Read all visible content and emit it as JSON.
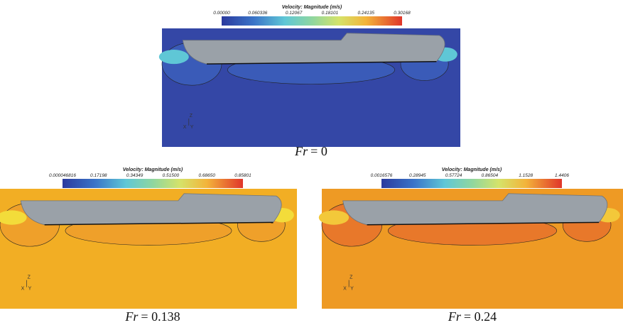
{
  "panels": [
    {
      "colorbar": {
        "title": "Velocity: Magnitude (m/s)",
        "ticks": [
          "0.00000",
          "0.060336",
          "0.12067",
          "0.18101",
          "0.24135",
          "0.30168"
        ]
      },
      "axes": {
        "z": "Z",
        "x": "X",
        "y": "Y"
      },
      "caption": {
        "variable": "Fr",
        "value": "= 0"
      }
    },
    {
      "colorbar": {
        "title": "Velocity: Magnitude (m/s)",
        "ticks": [
          "0.000046816",
          "0.17198",
          "0.34349",
          "0.51500",
          "0.68650",
          "0.85801"
        ]
      },
      "axes": {
        "z": "Z",
        "x": "X",
        "y": "Y"
      },
      "caption": {
        "variable": "Fr",
        "value": "= 0.138"
      }
    },
    {
      "colorbar": {
        "title": "Velocity: Magnitude (m/s)",
        "ticks": [
          "0.0016576",
          "0.28945",
          "0.57724",
          "0.86504",
          "1.1528",
          "1.4406"
        ]
      },
      "axes": {
        "z": "Z",
        "x": "X",
        "y": "Y"
      },
      "caption": {
        "variable": "Fr",
        "value": "= 0.24"
      }
    }
  ]
}
